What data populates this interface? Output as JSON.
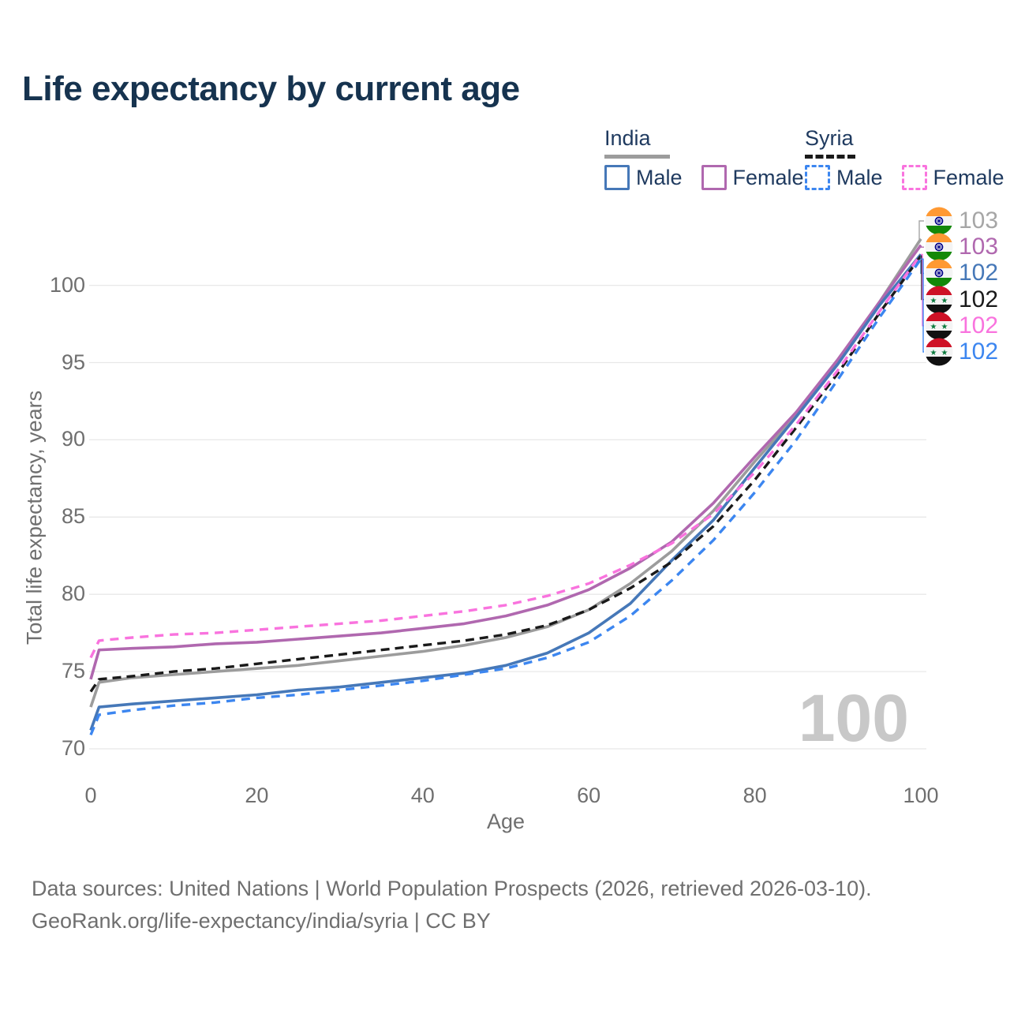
{
  "title": "Life expectancy by current age",
  "legend": {
    "groups": [
      {
        "country": "India",
        "items": [
          {
            "label": "Male"
          },
          {
            "label": "Female"
          }
        ]
      },
      {
        "country": "Syria",
        "items": [
          {
            "label": "Male"
          },
          {
            "label": "Female"
          }
        ]
      }
    ]
  },
  "watermark": "100",
  "footer": {
    "line1": "Data sources: United Nations | World Population Prospects (2026, retrieved 2026-03-10).",
    "line2": "GeoRank.org/life-expectancy/india/syria | CC BY"
  },
  "colors": {
    "title_text": "#16334f",
    "legend_text": "#1f3a5f",
    "axis_text": "#6f6f6f",
    "gridline": "#e8e8e8",
    "watermark": "#c8c8c8"
  },
  "chart_data": {
    "type": "line",
    "title": "Life expectancy by current age",
    "xlabel": "Age",
    "ylabel": "Total life expectancy, years",
    "x_ticks": [
      0,
      20,
      40,
      60,
      80,
      100
    ],
    "y_ticks": [
      70,
      75,
      80,
      85,
      90,
      95,
      100
    ],
    "xlim": [
      0,
      100
    ],
    "ylim": [
      70,
      103.5
    ],
    "grid": "horizontal",
    "x": [
      0,
      1,
      5,
      10,
      15,
      20,
      25,
      30,
      35,
      40,
      45,
      50,
      55,
      60,
      65,
      70,
      75,
      80,
      85,
      90,
      95,
      100
    ],
    "series": [
      {
        "name": "India — Both sexes",
        "country": "India",
        "sex": "all",
        "color": "#9c9c9c",
        "dash": null,
        "width": 3.6,
        "values": [
          72.7,
          74.3,
          74.6,
          74.8,
          75.0,
          75.2,
          75.4,
          75.7,
          76.0,
          76.3,
          76.7,
          77.2,
          77.9,
          79.0,
          80.7,
          82.8,
          85.4,
          88.6,
          91.6,
          95.1,
          98.9,
          103.0
        ]
      },
      {
        "name": "India — Female",
        "country": "India",
        "sex": "female",
        "color": "#b068af",
        "dash": null,
        "width": 3.6,
        "values": [
          74.5,
          76.4,
          76.5,
          76.6,
          76.8,
          76.9,
          77.1,
          77.3,
          77.5,
          77.8,
          78.1,
          78.6,
          79.3,
          80.3,
          81.7,
          83.4,
          85.9,
          88.9,
          91.8,
          95.2,
          98.9,
          102.6
        ]
      },
      {
        "name": "India — Male",
        "country": "India",
        "sex": "male",
        "color": "#4678b8",
        "dash": null,
        "width": 3.6,
        "values": [
          71.2,
          72.7,
          72.9,
          73.1,
          73.3,
          73.5,
          73.8,
          74.0,
          74.3,
          74.6,
          74.9,
          75.4,
          76.2,
          77.5,
          79.4,
          82.2,
          84.8,
          88.2,
          91.5,
          94.9,
          98.7,
          102.0
        ]
      },
      {
        "name": "Syria — Both sexes",
        "country": "Syria",
        "sex": "all",
        "color": "#1a1a1a",
        "dash": [
          11,
          7
        ],
        "width": 3.4,
        "values": [
          73.7,
          74.5,
          74.7,
          75.0,
          75.2,
          75.5,
          75.8,
          76.1,
          76.4,
          76.7,
          77.0,
          77.4,
          78.0,
          79.0,
          80.4,
          82.1,
          84.4,
          87.4,
          90.8,
          94.3,
          98.2,
          101.9
        ]
      },
      {
        "name": "Syria — Female",
        "country": "Syria",
        "sex": "female",
        "color": "#f973de",
        "dash": [
          11,
          8
        ],
        "width": 3.4,
        "values": [
          75.9,
          77.0,
          77.2,
          77.4,
          77.5,
          77.7,
          77.9,
          78.1,
          78.3,
          78.6,
          78.9,
          79.3,
          79.9,
          80.7,
          81.9,
          83.3,
          85.2,
          87.9,
          91.0,
          94.5,
          98.3,
          102.0
        ]
      },
      {
        "name": "Syria — Male",
        "country": "Syria",
        "sex": "male",
        "color": "#3c86f0",
        "dash": [
          11,
          8
        ],
        "width": 3.4,
        "values": [
          70.9,
          72.2,
          72.5,
          72.8,
          73.0,
          73.3,
          73.5,
          73.8,
          74.1,
          74.4,
          74.8,
          75.2,
          75.9,
          76.9,
          78.6,
          80.9,
          83.5,
          86.6,
          90.0,
          93.9,
          97.9,
          101.7
        ]
      }
    ],
    "end_labels": [
      {
        "country": "India",
        "value": "103",
        "color": "#a6a6a6",
        "series_index": 0
      },
      {
        "country": "India",
        "value": "103",
        "color": "#b068af",
        "series_index": 1
      },
      {
        "country": "India",
        "value": "102",
        "color": "#4678b8",
        "series_index": 2
      },
      {
        "country": "Syria",
        "value": "102",
        "color": "#1a1a1a",
        "series_index": 3
      },
      {
        "country": "Syria",
        "value": "102",
        "color": "#f973de",
        "series_index": 4
      },
      {
        "country": "Syria",
        "value": "102",
        "color": "#3c86f0",
        "series_index": 5
      }
    ],
    "legend_swatch_series": {
      "india_underline": 0,
      "india_male": 2,
      "india_female": 1,
      "syria_underline": 3,
      "syria_male": 5,
      "syria_female": 4
    }
  }
}
